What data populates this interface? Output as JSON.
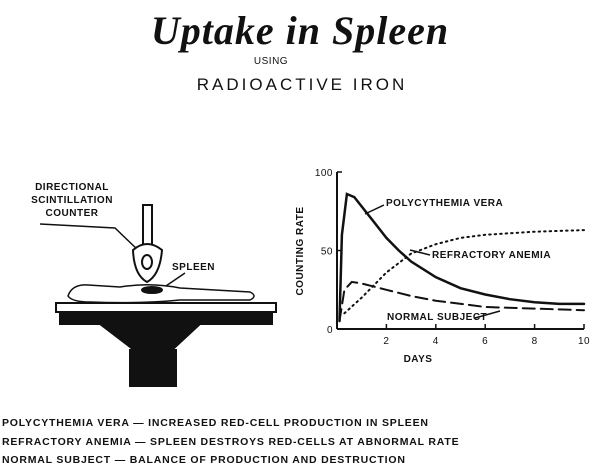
{
  "chart_data": {
    "type": "line",
    "title": "Uptake in Spleen",
    "subtitle_prefix": "USING",
    "subtitle": "RADIOACTIVE IRON",
    "xlabel": "DAYS",
    "ylabel": "COUNTING RATE",
    "xlim": [
      0,
      10
    ],
    "ylim": [
      0,
      100
    ],
    "xticks": [
      2,
      4,
      6,
      8,
      10
    ],
    "yticks": [
      0,
      50,
      100
    ],
    "grid": false,
    "series": [
      {
        "name": "POLYCYTHEMIA VERA",
        "color": "#111111",
        "style": "solid",
        "x": [
          0.1,
          0.2,
          0.4,
          0.7,
          1,
          1.5,
          2,
          2.5,
          3,
          4,
          5,
          6,
          7,
          8,
          9,
          10
        ],
        "values": [
          5,
          60,
          86,
          84,
          78,
          68,
          58,
          50,
          43,
          33,
          26,
          22,
          19,
          17,
          16,
          16
        ]
      },
      {
        "name": "REFRACTORY ANEMIA",
        "color": "#111111",
        "style": "dotted",
        "x": [
          0.3,
          1,
          2,
          3,
          4,
          5,
          6,
          8,
          10
        ],
        "values": [
          10,
          20,
          36,
          48,
          54,
          58,
          60,
          62,
          63
        ]
      },
      {
        "name": "NORMAL SUBJECT",
        "color": "#111111",
        "style": "dashed",
        "x": [
          0.1,
          0.3,
          0.6,
          1,
          2,
          3,
          4,
          6,
          8,
          10
        ],
        "values": [
          5,
          25,
          30,
          29,
          25,
          21,
          18,
          14,
          13,
          12
        ]
      }
    ]
  },
  "illustration": {
    "counter_label": [
      "DIRECTIONAL",
      "SCINTILLATION",
      "COUNTER"
    ],
    "organ_label": "SPLEEN"
  },
  "notes": [
    "POLYCYTHEMIA VERA — INCREASED RED-CELL PRODUCTION IN SPLEEN",
    "REFRACTORY ANEMIA — SPLEEN DESTROYS RED-CELLS AT ABNORMAL RATE",
    "NORMAL SUBJECT — BALANCE OF PRODUCTION AND DESTRUCTION"
  ]
}
